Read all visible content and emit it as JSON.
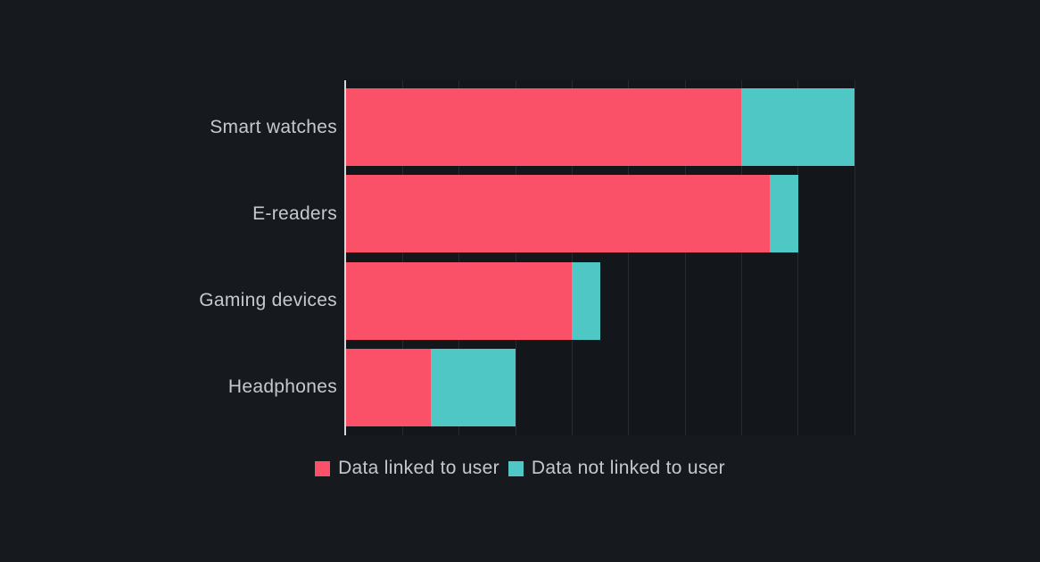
{
  "theme": {
    "background": "#161a1e",
    "plot_background": "#13161a",
    "grid_color": "#262b31",
    "axis_line_color": "#d6d8da",
    "text_color": "#c6c8cc"
  },
  "chart_data": {
    "type": "bar",
    "orientation": "horizontal",
    "stacked": true,
    "title": "",
    "xlabel": "",
    "ylabel": "",
    "categories": [
      "Smart watches",
      "E-readers",
      "Gaming devices",
      "Headphones"
    ],
    "series": [
      {
        "name": "Data linked to user",
        "color": "#fa5169",
        "values": [
          14,
          15,
          8,
          3
        ]
      },
      {
        "name": "Data not linked to user",
        "color": "#4ec7c5",
        "values": [
          4,
          1,
          1,
          3
        ]
      }
    ],
    "totals": [
      18,
      16,
      9,
      6
    ],
    "xlim": [
      0,
      18
    ],
    "grid_step": 2,
    "grid": true,
    "x_tick_labels_visible": false,
    "legend_position": "bottom"
  }
}
